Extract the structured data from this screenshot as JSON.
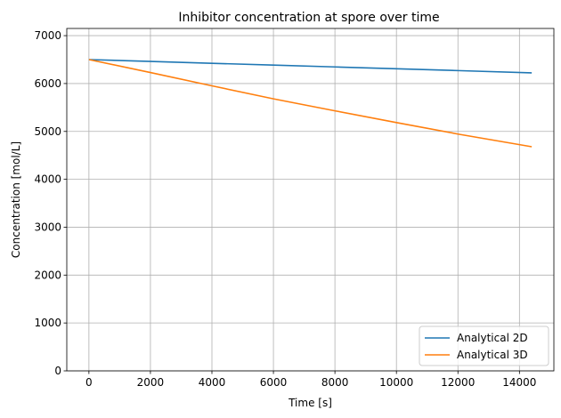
{
  "chart_data": {
    "type": "line",
    "title": "Inhibitor concentration at spore over time",
    "xlabel": "Time [s]",
    "ylabel": "Concentration [mol/L]",
    "xlim": [
      -720,
      15120
    ],
    "ylim": [
      0,
      7150
    ],
    "xticks": [
      0,
      2000,
      4000,
      6000,
      8000,
      10000,
      12000,
      14000
    ],
    "yticks": [
      0,
      1000,
      2000,
      3000,
      4000,
      5000,
      6000,
      7000
    ],
    "grid": true,
    "legend_position": "lower-right",
    "series": [
      {
        "name": "Analytical 2D",
        "color": "#1f77b4",
        "x": [
          0,
          2000,
          4000,
          6000,
          8000,
          10000,
          12000,
          14400
        ],
        "y": [
          6500,
          6462,
          6423,
          6385,
          6347,
          6308,
          6270,
          6222
        ]
      },
      {
        "name": "Analytical 3D",
        "color": "#ff7f0e",
        "x": [
          0,
          2000,
          4000,
          6000,
          8000,
          10000,
          12000,
          14400
        ],
        "y": [
          6500,
          6230,
          5952,
          5680,
          5430,
          5185,
          4945,
          4680
        ]
      }
    ]
  }
}
